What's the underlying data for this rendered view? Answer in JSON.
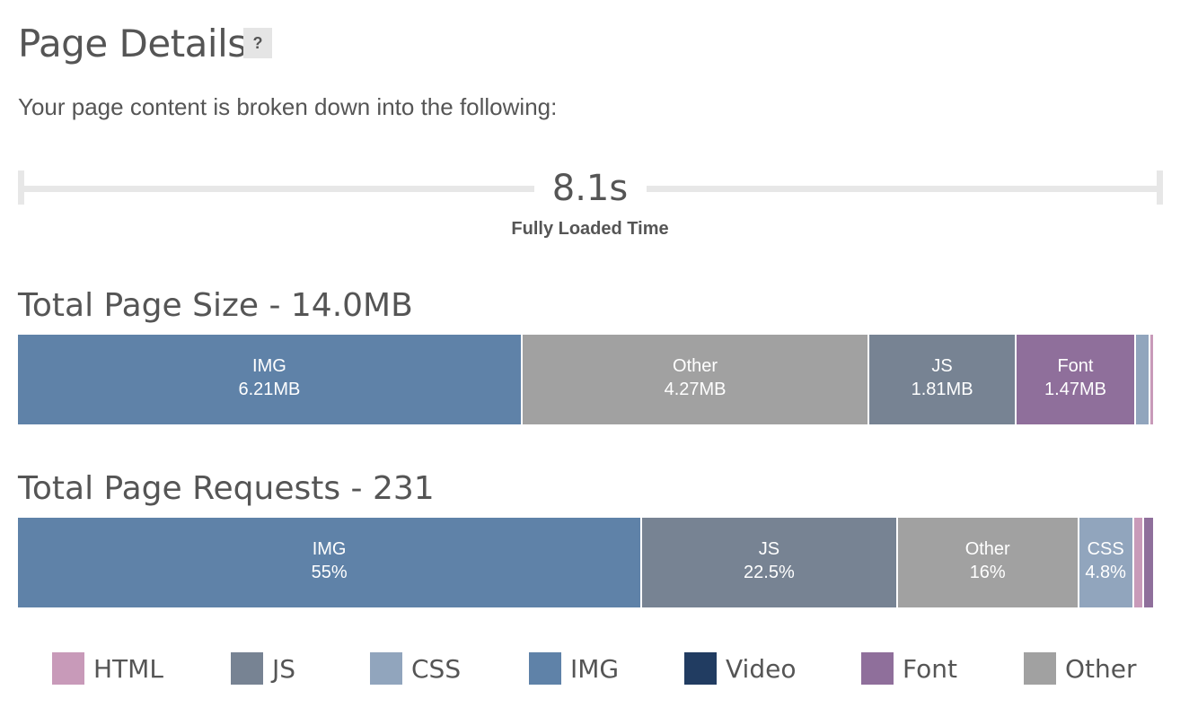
{
  "header": {
    "title": "Page Details",
    "help_label": "?",
    "subtitle": "Your page content is broken down into the following:"
  },
  "timing": {
    "value": "8.1s",
    "label": "Fully Loaded Time"
  },
  "colors": {
    "HTML": "#c89ab9",
    "JS": "#778393",
    "CSS": "#91a5bd",
    "IMG": "#5f82a8",
    "Video": "#213c61",
    "Font": "#8f6f9b",
    "Other": "#a1a1a1"
  },
  "chart_data": [
    {
      "type": "bar",
      "orientation": "horizontal-stacked",
      "title": "Total Page Size - 14.0MB",
      "unit": "MB",
      "segments": [
        {
          "category": "IMG",
          "value": 6.21,
          "value_label": "6.21MB"
        },
        {
          "category": "Other",
          "value": 4.27,
          "value_label": "4.27MB"
        },
        {
          "category": "JS",
          "value": 1.81,
          "value_label": "1.81MB"
        },
        {
          "category": "Font",
          "value": 1.47,
          "value_label": "1.47MB"
        },
        {
          "category": "CSS",
          "value": 0.18,
          "value_label": ""
        },
        {
          "category": "HTML",
          "value": 0.03,
          "value_label": ""
        }
      ]
    },
    {
      "type": "bar",
      "orientation": "horizontal-stacked",
      "title": "Total Page Requests - 231",
      "unit": "%",
      "segments": [
        {
          "category": "IMG",
          "value": 55,
          "value_label": "55%"
        },
        {
          "category": "JS",
          "value": 22.5,
          "value_label": "22.5%"
        },
        {
          "category": "Other",
          "value": 16,
          "value_label": "16%"
        },
        {
          "category": "CSS",
          "value": 4.8,
          "value_label": "4.8%"
        },
        {
          "category": "HTML",
          "value": 0.9,
          "value_label": ""
        },
        {
          "category": "Font",
          "value": 0.8,
          "value_label": ""
        }
      ]
    }
  ],
  "legend": {
    "items": [
      "HTML",
      "JS",
      "CSS",
      "IMG",
      "Video",
      "Font",
      "Other"
    ]
  }
}
